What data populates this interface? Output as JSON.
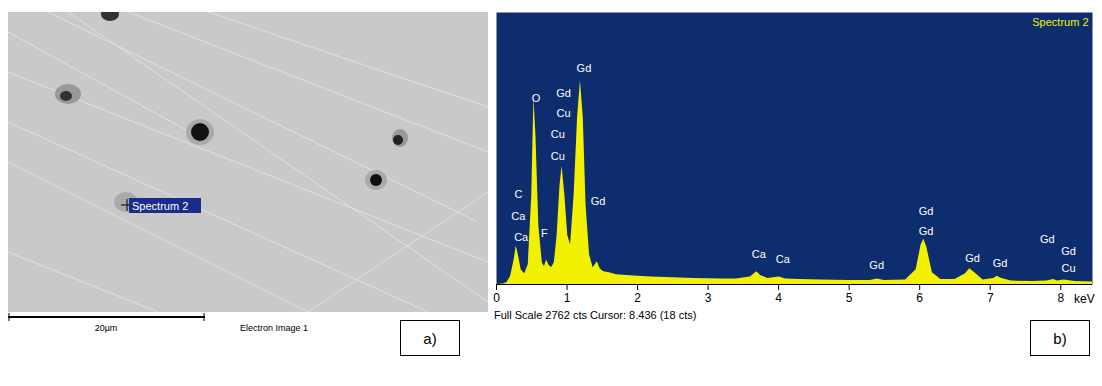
{
  "image_panel": {
    "label": "a)",
    "caption": "Electron Image 1",
    "scale_bar": "20µm",
    "marker_label": "Spectrum 2"
  },
  "chart_data": {
    "type": "area",
    "title": "Spectrum 2",
    "panel_label": "b)",
    "xlabel": "keV",
    "footer": "Full Scale 2762 cts Cursor: 8.436 (18 cts)",
    "color": "#f2f200",
    "tick_labels": "x",
    "grid": false,
    "xlim": [
      0,
      8.45
    ],
    "xticks": [
      0,
      1,
      2,
      3,
      4,
      5,
      6,
      7,
      8
    ],
    "ylim": [
      0,
      2762
    ],
    "x": [
      0.0,
      0.1,
      0.15,
      0.2,
      0.25,
      0.28,
      0.31,
      0.35,
      0.4,
      0.45,
      0.5,
      0.53,
      0.56,
      0.6,
      0.65,
      0.68,
      0.71,
      0.74,
      0.78,
      0.82,
      0.86,
      0.9,
      0.93,
      0.97,
      1.01,
      1.05,
      1.1,
      1.15,
      1.19,
      1.23,
      1.27,
      1.32,
      1.37,
      1.43,
      1.47,
      1.52,
      1.6,
      1.7,
      1.8,
      2.0,
      2.2,
      2.4,
      2.6,
      2.8,
      3.0,
      3.2,
      3.4,
      3.6,
      3.69,
      3.75,
      3.85,
      4.01,
      4.1,
      4.3,
      4.6,
      5.0,
      5.3,
      5.4,
      5.5,
      5.8,
      5.95,
      6.02,
      6.06,
      6.1,
      6.18,
      6.3,
      6.5,
      6.65,
      6.71,
      6.78,
      6.9,
      7.05,
      7.1,
      7.16,
      7.3,
      7.6,
      7.8,
      7.9,
      7.95,
      8.05,
      8.2,
      8.45
    ],
    "values": [
      0,
      5,
      20,
      80,
      250,
      390,
      300,
      150,
      110,
      200,
      900,
      1900,
      1500,
      600,
      220,
      180,
      250,
      200,
      170,
      220,
      500,
      1000,
      1200,
      900,
      500,
      400,
      900,
      1700,
      2070,
      1700,
      800,
      300,
      170,
      230,
      160,
      130,
      120,
      100,
      95,
      85,
      75,
      70,
      65,
      60,
      58,
      55,
      55,
      75,
      130,
      90,
      60,
      75,
      55,
      50,
      45,
      40,
      40,
      55,
      40,
      45,
      150,
      400,
      460,
      380,
      120,
      50,
      50,
      110,
      160,
      120,
      45,
      60,
      85,
      60,
      35,
      30,
      35,
      50,
      35,
      45,
      30,
      25
    ],
    "annotations": [
      {
        "text": "Gd",
        "x": 1.24,
        "y": 2191
      },
      {
        "text": "O",
        "x": 0.56,
        "y": 1886
      },
      {
        "text": "Gd",
        "x": 0.95,
        "y": 1937
      },
      {
        "text": "Cu",
        "x": 0.95,
        "y": 1733
      },
      {
        "text": "Cu",
        "x": 0.87,
        "y": 1519
      },
      {
        "text": "Cu",
        "x": 0.87,
        "y": 1305
      },
      {
        "text": "Gd",
        "x": 1.44,
        "y": 846
      },
      {
        "text": "F",
        "x": 0.68,
        "y": 520
      },
      {
        "text": "C",
        "x": 0.31,
        "y": 917
      },
      {
        "text": "Ca",
        "x": 0.31,
        "y": 693
      },
      {
        "text": "Ca",
        "x": 0.35,
        "y": 479
      },
      {
        "text": "Ca",
        "x": 3.72,
        "y": 306
      },
      {
        "text": "Ca",
        "x": 4.06,
        "y": 255
      },
      {
        "text": "Gd",
        "x": 5.39,
        "y": 194
      },
      {
        "text": "Gd",
        "x": 6.09,
        "y": 744
      },
      {
        "text": "Gd",
        "x": 6.09,
        "y": 540
      },
      {
        "text": "Gd",
        "x": 6.75,
        "y": 265
      },
      {
        "text": "Gd",
        "x": 7.14,
        "y": 214
      },
      {
        "text": "Gd",
        "x": 7.81,
        "y": 459
      },
      {
        "text": "Gd",
        "x": 8.11,
        "y": 336
      },
      {
        "text": "Cu",
        "x": 8.11,
        "y": 163
      }
    ]
  }
}
